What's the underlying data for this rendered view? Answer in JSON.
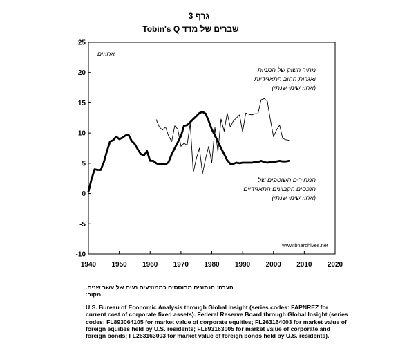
{
  "chart_data": {
    "type": "line",
    "title": "גרף 3",
    "subtitle": "Tobin's Q שברים של מדד",
    "unit_label": "אחוזים",
    "watermark": "www.bnarchives.net",
    "xlim": [
      1940,
      2020
    ],
    "ylim": [
      -10,
      25
    ],
    "x_ticks": [
      1940,
      1950,
      1960,
      1970,
      1980,
      1990,
      2000,
      2010,
      2020
    ],
    "y_ticks": [
      -10,
      -5,
      0,
      5,
      10,
      15,
      20,
      25
    ],
    "grid": false,
    "series": [
      {
        "id": "market_value_growth",
        "label_lines": [
          "מחיר השוק של המניות",
          "ואגרות החוב התאגידיות",
          "(אחוז שינוי שנתי)"
        ],
        "style": "thin",
        "color": "#000000",
        "x": [
          1962,
          1963,
          1964,
          1965,
          1966,
          1967,
          1968,
          1969,
          1970,
          1971,
          1972,
          1973,
          1974,
          1975,
          1976,
          1977,
          1978,
          1979,
          1980,
          1981,
          1982,
          1983,
          1984,
          1985,
          1986,
          1987,
          1988,
          1989,
          1990,
          1991,
          1992,
          1993,
          1994,
          1995,
          1996,
          1997,
          1998,
          1999,
          2000,
          2001,
          2002,
          2003,
          2004,
          2005
        ],
        "y": [
          12.2,
          11,
          10.5,
          11,
          9.5,
          8.6,
          11.2,
          10.6,
          7.8,
          8.3,
          8,
          11.6,
          3.5,
          5.8,
          7.5,
          3.3,
          5.8,
          7.8,
          5.1,
          10.9,
          6.9,
          12.3,
          10.3,
          13.3,
          11,
          12,
          12.5,
          13,
          10.2,
          13.3,
          13.1,
          13,
          13.2,
          13.2,
          15.5,
          15.7,
          15.3,
          12.2,
          9.4,
          10.5,
          11.3,
          9.1,
          8.9,
          8.8
        ]
      },
      {
        "id": "fixed_assets_growth",
        "label_lines": [
          "המחירים השוטפים של",
          "הנכסים הקבועים התאגידיים",
          "(אחוז שינוי שנתי)"
        ],
        "style": "thick",
        "color": "#000000",
        "x": [
          1940,
          1941,
          1942,
          1943,
          1944,
          1945,
          1946,
          1947,
          1948,
          1949,
          1950,
          1951,
          1952,
          1953,
          1954,
          1955,
          1956,
          1957,
          1958,
          1959,
          1960,
          1961,
          1962,
          1963,
          1964,
          1965,
          1966,
          1967,
          1968,
          1969,
          1970,
          1971,
          1972,
          1973,
          1974,
          1975,
          1976,
          1977,
          1978,
          1979,
          1980,
          1981,
          1982,
          1983,
          1984,
          1985,
          1986,
          1987,
          1988,
          1989,
          1990,
          1991,
          1992,
          1993,
          1994,
          1995,
          1996,
          1997,
          1998,
          1999,
          2000,
          2001,
          2002,
          2003,
          2004,
          2005
        ],
        "y": [
          0.3,
          2.4,
          4,
          3.9,
          3.9,
          5.2,
          7,
          8.6,
          8.8,
          9.4,
          9,
          9.2,
          9.6,
          9.7,
          8.7,
          8.2,
          7.3,
          6.5,
          6.3,
          7,
          5.4,
          5.4,
          5,
          4.8,
          4.9,
          4.8,
          5.2,
          6.5,
          7.5,
          8.5,
          9.5,
          11.2,
          11.3,
          11.8,
          12.3,
          12.8,
          13.3,
          13.5,
          13.2,
          12,
          10.6,
          9.6,
          8.6,
          7.5,
          6.5,
          5.5,
          4.9,
          4.9,
          5.1,
          5,
          5.1,
          5.1,
          5.1,
          5.1,
          5.2,
          5.2,
          5.4,
          5.2,
          5.1,
          5.2,
          5.2,
          5.3,
          5.4,
          5.3,
          5.3,
          5.4
        ]
      }
    ]
  },
  "notes": {
    "note_line": "הערה: הנתונים מבוססים כממוצעים נעים של עשר שנים.",
    "source_heading": "מקור:",
    "source_body": "U.S. Bureau of Economic Analysis through Global Insight (series codes: FAPNREZ for current cost of corporate fixed assets). Federal Reserve Board through Global Insight (series codes: FL893064105 for market value of corporate equities; FL263164003 for market value of foreign equities held by U.S. residents; FL893163005 for market value of corporate and foreign bonds; FL263163003 for market value of foreign bonds held by U.S. residents)."
  }
}
